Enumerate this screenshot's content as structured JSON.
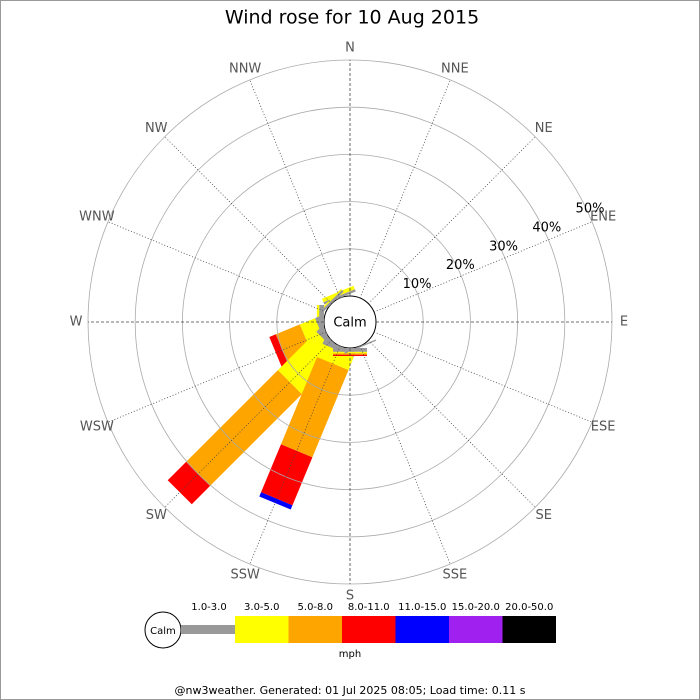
{
  "chart_data": {
    "type": "windrose",
    "title": "Wind rose for 10 Aug 2015",
    "categories": [
      "N",
      "NNE",
      "NE",
      "ENE",
      "E",
      "ESE",
      "SE",
      "SSE",
      "S",
      "SSW",
      "SW",
      "WSW",
      "W",
      "WNW",
      "NW",
      "NNW"
    ],
    "series": [
      {
        "name": "1.0-3.0",
        "color": "#999999",
        "values": [
          0,
          0,
          0,
          0,
          0,
          0,
          0,
          0.3,
          0.8,
          1,
          1,
          1,
          1,
          0,
          0.5,
          0.5
        ]
      },
      {
        "name": "3.0-5.0",
        "color": "#ffff00",
        "values": [
          0,
          0,
          0,
          0,
          0,
          0,
          0,
          0,
          0.3,
          3,
          11.5,
          3.5,
          0.5,
          0,
          0.3,
          0.8
        ]
      },
      {
        "name": "5.0-8.0",
        "color": "#ffa500",
        "values": [
          0,
          0,
          0,
          0,
          0,
          0,
          0,
          0,
          0.3,
          20,
          27.5,
          5.5,
          0,
          0,
          0,
          0
        ]
      },
      {
        "name": "8.0-11.0",
        "color": "#ff0000",
        "values": [
          0,
          0,
          0,
          0,
          0,
          0,
          0,
          0,
          0.3,
          11,
          5.5,
          1.5,
          0,
          0,
          0,
          0
        ]
      },
      {
        "name": "11.0-15.0",
        "color": "#0000ff",
        "values": [
          0,
          0,
          0,
          0,
          0,
          0,
          0,
          0,
          0,
          1,
          0,
          0,
          0,
          0,
          0,
          0
        ]
      },
      {
        "name": "15.0-20.0",
        "color": "#a020f0",
        "values": [
          0,
          0,
          0,
          0,
          0,
          0,
          0,
          0,
          0,
          0,
          0,
          0,
          0,
          0,
          0,
          0
        ]
      },
      {
        "name": "20.0-50.0",
        "color": "#000000",
        "values": [
          0,
          0,
          0,
          0,
          0,
          0,
          0,
          0,
          0,
          0,
          0,
          0,
          0,
          0,
          0,
          0
        ]
      }
    ],
    "ylim": [
      0,
      50
    ],
    "yticks": [
      {
        "value": 10,
        "label": "10%"
      },
      {
        "value": 20,
        "label": "20%"
      },
      {
        "value": 30,
        "label": "30%"
      },
      {
        "value": 40,
        "label": "40%"
      },
      {
        "value": 50,
        "label": "50%"
      }
    ],
    "calm_label": "Calm",
    "legend_calm": "Calm",
    "unit": "mph",
    "footer": "@nw3weather.  Generated: 01 Jul 2025 08:05; Load time: 0.11 s"
  }
}
